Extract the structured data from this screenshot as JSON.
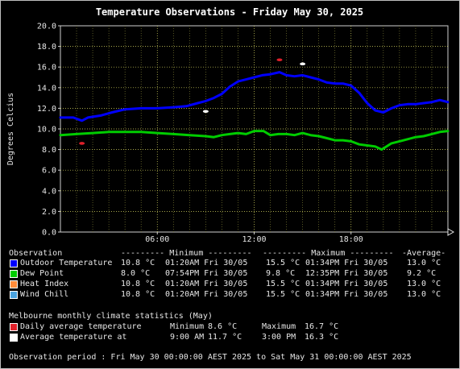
{
  "chart_data": {
    "type": "line",
    "title": "Temperature Observations - Friday May 30, 2025",
    "ylabel": "Degrees Celcius",
    "xlabel": "",
    "ylim": [
      0,
      20
    ],
    "xlim_hours": [
      0,
      24
    ],
    "yticks": [
      "0.0",
      "2.0",
      "4.0",
      "6.0",
      "8.0",
      "10.0",
      "12.0",
      "14.0",
      "16.0",
      "18.0",
      "20.0"
    ],
    "xticks": [
      {
        "hour": 6,
        "label": "06:00"
      },
      {
        "hour": 12,
        "label": "12:00"
      },
      {
        "hour": 18,
        "label": "18:00"
      }
    ],
    "grid": true,
    "series": [
      {
        "name": "Outdoor Temperature",
        "color": "#0000ff",
        "points": [
          [
            0,
            11.1
          ],
          [
            0.8,
            11.1
          ],
          [
            1.33,
            10.8
          ],
          [
            1.7,
            11.1
          ],
          [
            2.5,
            11.3
          ],
          [
            3.2,
            11.6
          ],
          [
            4,
            11.9
          ],
          [
            5,
            12.0
          ],
          [
            6,
            12.0
          ],
          [
            7,
            12.1
          ],
          [
            7.8,
            12.2
          ],
          [
            8.5,
            12.5
          ],
          [
            9,
            12.7
          ],
          [
            9.5,
            13.0
          ],
          [
            10,
            13.4
          ],
          [
            10.5,
            14.1
          ],
          [
            11,
            14.6
          ],
          [
            11.5,
            14.8
          ],
          [
            12,
            15.0
          ],
          [
            12.5,
            15.2
          ],
          [
            13,
            15.3
          ],
          [
            13.57,
            15.5
          ],
          [
            14,
            15.2
          ],
          [
            14.5,
            15.1
          ],
          [
            15,
            15.2
          ],
          [
            15.5,
            15.0
          ],
          [
            16,
            14.8
          ],
          [
            16.5,
            14.5
          ],
          [
            17,
            14.4
          ],
          [
            17.5,
            14.4
          ],
          [
            18,
            14.2
          ],
          [
            18.5,
            13.5
          ],
          [
            19,
            12.5
          ],
          [
            19.5,
            11.8
          ],
          [
            20,
            11.6
          ],
          [
            20.5,
            12.0
          ],
          [
            21,
            12.3
          ],
          [
            21.5,
            12.4
          ],
          [
            22,
            12.4
          ],
          [
            22.5,
            12.5
          ],
          [
            23,
            12.6
          ],
          [
            23.5,
            12.8
          ],
          [
            24,
            12.6
          ]
        ]
      },
      {
        "name": "Dew Point",
        "color": "#00cc00",
        "points": [
          [
            0,
            9.4
          ],
          [
            1,
            9.5
          ],
          [
            2,
            9.6
          ],
          [
            3,
            9.7
          ],
          [
            4,
            9.7
          ],
          [
            5,
            9.7
          ],
          [
            6,
            9.6
          ],
          [
            7,
            9.5
          ],
          [
            8,
            9.4
          ],
          [
            9,
            9.3
          ],
          [
            9.5,
            9.2
          ],
          [
            10,
            9.4
          ],
          [
            10.5,
            9.5
          ],
          [
            11,
            9.6
          ],
          [
            11.5,
            9.5
          ],
          [
            12,
            9.8
          ],
          [
            12.58,
            9.8
          ],
          [
            13,
            9.4
          ],
          [
            13.5,
            9.5
          ],
          [
            14,
            9.5
          ],
          [
            14.5,
            9.4
          ],
          [
            15,
            9.6
          ],
          [
            15.5,
            9.4
          ],
          [
            16,
            9.3
          ],
          [
            16.5,
            9.1
          ],
          [
            17,
            8.9
          ],
          [
            17.5,
            8.9
          ],
          [
            18,
            8.8
          ],
          [
            18.5,
            8.5
          ],
          [
            19,
            8.4
          ],
          [
            19.5,
            8.3
          ],
          [
            19.9,
            8.0
          ],
          [
            20.5,
            8.6
          ],
          [
            21,
            8.8
          ],
          [
            21.5,
            9.0
          ],
          [
            22,
            9.2
          ],
          [
            22.5,
            9.3
          ],
          [
            23,
            9.5
          ],
          [
            23.5,
            9.7
          ],
          [
            24,
            9.8
          ]
        ]
      }
    ],
    "markers": [
      {
        "name": "Daily average temperature",
        "color": "#e0202a",
        "points": [
          [
            1.33,
            8.6
          ],
          [
            13.57,
            16.7
          ]
        ]
      },
      {
        "name": "Average temperature at",
        "color": "#ffffff",
        "points": [
          [
            9,
            11.7
          ],
          [
            15,
            16.3
          ]
        ]
      }
    ]
  },
  "legend": {
    "header": {
      "observation": "Observation",
      "minimum": "--------- Minimum ---------",
      "maximum": "--------- Maximum ---------",
      "average": "-Average-"
    },
    "rows": [
      {
        "color": "#0000ff",
        "label": "Outdoor Temperature",
        "min": "10.8 °C",
        "min_at": "01:20AM Fri 30/05",
        "max": "15.5 °C",
        "max_at": "01:34PM Fri 30/05",
        "avg": "13.0 °C"
      },
      {
        "color": "#00cc00",
        "label": "Dew Point",
        "min": "8.0 °C",
        "min_at": "07:54PM Fri 30/05",
        "max": "9.8 °C",
        "max_at": "12:35PM Fri 30/05",
        "avg": "9.2 °C"
      },
      {
        "color": "#ff8c3a",
        "label": "Heat Index",
        "min": "10.8 °C",
        "min_at": "01:20AM Fri 30/05",
        "max": "15.5 °C",
        "max_at": "01:34PM Fri 30/05",
        "avg": "13.0 °C"
      },
      {
        "color": "#4aa3df",
        "label": "Wind Chill",
        "min": "10.8 °C",
        "min_at": "01:20AM Fri 30/05",
        "max": "15.5 °C",
        "max_at": "01:34PM Fri 30/05",
        "avg": "13.0 °C"
      }
    ]
  },
  "climate": {
    "title": "Melbourne monthly climate statistics (May)",
    "rows": [
      {
        "color": "#e0202a",
        "label": "Daily average temperature",
        "col1_label": "Minimum",
        "col1_value": "8.6 °C",
        "col2_label": "Maximum",
        "col2_value": "16.7 °C"
      },
      {
        "color": "#ffffff",
        "label": "Average temperature at",
        "col1_label": "9:00 AM",
        "col1_value": "11.7 °C",
        "col2_label": "3:00 PM",
        "col2_value": "16.3 °C"
      }
    ]
  },
  "footer": {
    "period": "Observation period : Fri May 30 00:00:00 AEST 2025 to Sat May 31 00:00:00 AEST 2025"
  }
}
